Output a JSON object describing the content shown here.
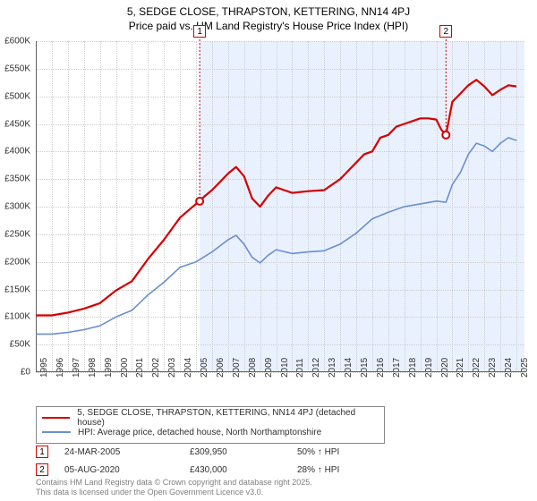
{
  "title_line1": "5, SEDGE CLOSE, THRAPSTON, KETTERING, NN14 4PJ",
  "title_line2": "Price paid vs. HM Land Registry's House Price Index (HPI)",
  "chart": {
    "type": "line",
    "background_color": "#ffffff",
    "highlight_fill": "#eaf1fe",
    "grid_color": "#cccccc",
    "axis_color": "#606060",
    "xlim": [
      1995,
      2025.5
    ],
    "ylim": [
      0,
      600000
    ],
    "ytick_step": 50000,
    "yticks": [
      "£0",
      "£50K",
      "£100K",
      "£150K",
      "£200K",
      "£250K",
      "£300K",
      "£350K",
      "£400K",
      "£450K",
      "£500K",
      "£550K",
      "£600K"
    ],
    "xticks": [
      1995,
      1996,
      1997,
      1998,
      1999,
      2000,
      2001,
      2002,
      2003,
      2004,
      2005,
      2006,
      2007,
      2008,
      2009,
      2010,
      2011,
      2012,
      2013,
      2014,
      2015,
      2016,
      2017,
      2018,
      2019,
      2020,
      2021,
      2022,
      2023,
      2024,
      2025
    ],
    "highlight_start": 2005.23,
    "highlight_end": 2025.5,
    "series": [
      {
        "name": "property",
        "label": "5, SEDGE CLOSE, THRAPSTON, KETTERING, NN14 4PJ (detached house)",
        "color": "#d40000",
        "line_width": 2.2,
        "points": [
          [
            1995,
            103000
          ],
          [
            1996,
            103000
          ],
          [
            1997,
            108000
          ],
          [
            1998,
            115000
          ],
          [
            1999,
            125000
          ],
          [
            2000,
            148000
          ],
          [
            2001,
            165000
          ],
          [
            2002,
            205000
          ],
          [
            2003,
            240000
          ],
          [
            2004,
            280000
          ],
          [
            2005,
            305000
          ],
          [
            2005.23,
            309950
          ],
          [
            2005.5,
            318000
          ],
          [
            2006,
            330000
          ],
          [
            2006.5,
            345000
          ],
          [
            2007,
            360000
          ],
          [
            2007.5,
            372000
          ],
          [
            2008,
            355000
          ],
          [
            2008.5,
            315000
          ],
          [
            2009,
            300000
          ],
          [
            2009.5,
            320000
          ],
          [
            2010,
            335000
          ],
          [
            2010.5,
            330000
          ],
          [
            2011,
            325000
          ],
          [
            2012,
            328000
          ],
          [
            2013,
            330000
          ],
          [
            2013.5,
            340000
          ],
          [
            2014,
            350000
          ],
          [
            2014.5,
            365000
          ],
          [
            2015,
            380000
          ],
          [
            2015.5,
            395000
          ],
          [
            2016,
            400000
          ],
          [
            2016.5,
            425000
          ],
          [
            2017,
            430000
          ],
          [
            2017.5,
            445000
          ],
          [
            2018,
            450000
          ],
          [
            2018.5,
            455000
          ],
          [
            2019,
            460000
          ],
          [
            2019.5,
            460000
          ],
          [
            2020,
            458000
          ],
          [
            2020.3,
            440000
          ],
          [
            2020.6,
            430000
          ],
          [
            2021,
            490000
          ],
          [
            2021.5,
            505000
          ],
          [
            2022,
            520000
          ],
          [
            2022.5,
            530000
          ],
          [
            2023,
            518000
          ],
          [
            2023.5,
            502000
          ],
          [
            2024,
            512000
          ],
          [
            2024.5,
            520000
          ],
          [
            2025,
            518000
          ]
        ]
      },
      {
        "name": "hpi",
        "label": "HPI: Average price, detached house, North Northamptonshire",
        "color": "#6a8fd0",
        "line_width": 1.6,
        "points": [
          [
            1995,
            69000
          ],
          [
            1996,
            69000
          ],
          [
            1997,
            72000
          ],
          [
            1998,
            77000
          ],
          [
            1999,
            84000
          ],
          [
            2000,
            100000
          ],
          [
            2001,
            112000
          ],
          [
            2002,
            140000
          ],
          [
            2003,
            163000
          ],
          [
            2004,
            190000
          ],
          [
            2005,
            200000
          ],
          [
            2006,
            218000
          ],
          [
            2007,
            240000
          ],
          [
            2007.5,
            248000
          ],
          [
            2008,
            232000
          ],
          [
            2008.5,
            208000
          ],
          [
            2009,
            198000
          ],
          [
            2009.5,
            212000
          ],
          [
            2010,
            222000
          ],
          [
            2011,
            215000
          ],
          [
            2012,
            218000
          ],
          [
            2013,
            220000
          ],
          [
            2014,
            232000
          ],
          [
            2015,
            252000
          ],
          [
            2016,
            278000
          ],
          [
            2017,
            290000
          ],
          [
            2018,
            300000
          ],
          [
            2019,
            305000
          ],
          [
            2020,
            310000
          ],
          [
            2020.6,
            308000
          ],
          [
            2021,
            340000
          ],
          [
            2021.5,
            362000
          ],
          [
            2022,
            395000
          ],
          [
            2022.5,
            415000
          ],
          [
            2023,
            410000
          ],
          [
            2023.5,
            400000
          ],
          [
            2024,
            415000
          ],
          [
            2024.5,
            425000
          ],
          [
            2025,
            420000
          ]
        ]
      }
    ],
    "markers": [
      {
        "id": "1",
        "x": 2005.23,
        "y": 309950,
        "color": "#d40000"
      },
      {
        "id": "2",
        "x": 2020.6,
        "y": 430000,
        "color": "#d40000"
      }
    ]
  },
  "transactions": [
    {
      "id": "1",
      "date": "24-MAR-2005",
      "price": "£309,950",
      "delta": "50% ↑ HPI",
      "color": "#d40000"
    },
    {
      "id": "2",
      "date": "05-AUG-2020",
      "price": "£430,000",
      "delta": "28% ↑ HPI",
      "color": "#d40000"
    }
  ],
  "attribution_line1": "Contains HM Land Registry data © Crown copyright and database right 2025.",
  "attribution_line2": "This data is licensed under the Open Government Licence v3.0."
}
